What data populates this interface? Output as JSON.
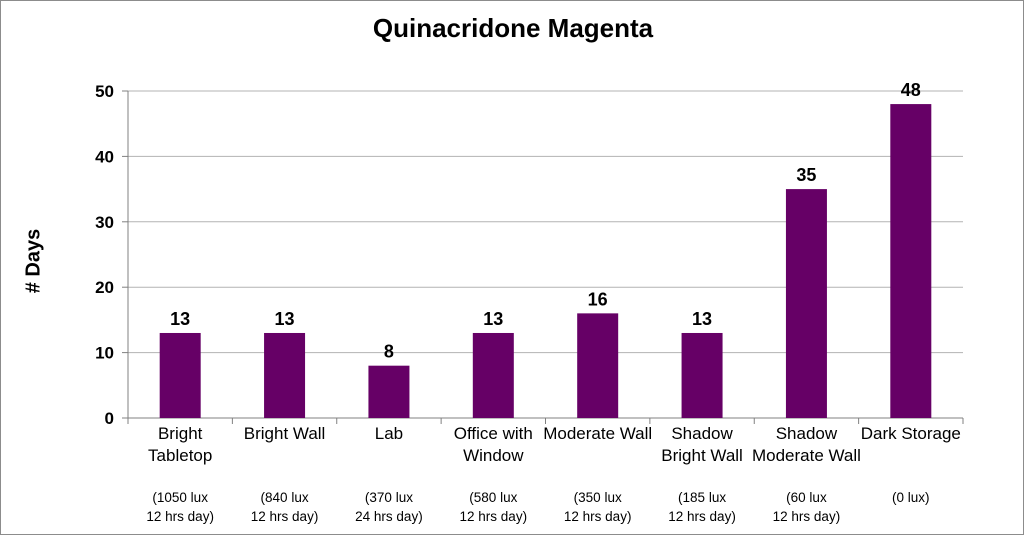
{
  "chart_data": {
    "type": "bar",
    "title": "Quinacridone Magenta",
    "ylabel": "# Days",
    "xlabel": "",
    "ylim": [
      0,
      50
    ],
    "yticks": [
      0,
      10,
      20,
      30,
      40,
      50
    ],
    "grid": true,
    "bar_color": "#660066",
    "categories": [
      {
        "label": "Bright Tabletop",
        "sub1": "(1050 lux",
        "sub2": "12 hrs day)"
      },
      {
        "label": "Bright Wall",
        "sub1": "(840 lux",
        "sub2": "12 hrs day)"
      },
      {
        "label": "Lab",
        "sub1": "(370 lux",
        "sub2": "24 hrs day)"
      },
      {
        "label": "Office with Window",
        "sub1": "(580 lux",
        "sub2": "12 hrs day)"
      },
      {
        "label": "Moderate Wall",
        "sub1": "(350 lux",
        "sub2": "12 hrs day)"
      },
      {
        "label": "Shadow Bright Wall",
        "sub1": "(185 lux",
        "sub2": "12 hrs day)"
      },
      {
        "label": "Shadow Moderate Wall",
        "sub1": "(60 lux",
        "sub2": "12 hrs day)"
      },
      {
        "label": "Dark Storage",
        "sub1": "(0 lux)",
        "sub2": ""
      }
    ],
    "values": [
      13,
      13,
      8,
      13,
      16,
      13,
      35,
      48
    ]
  }
}
